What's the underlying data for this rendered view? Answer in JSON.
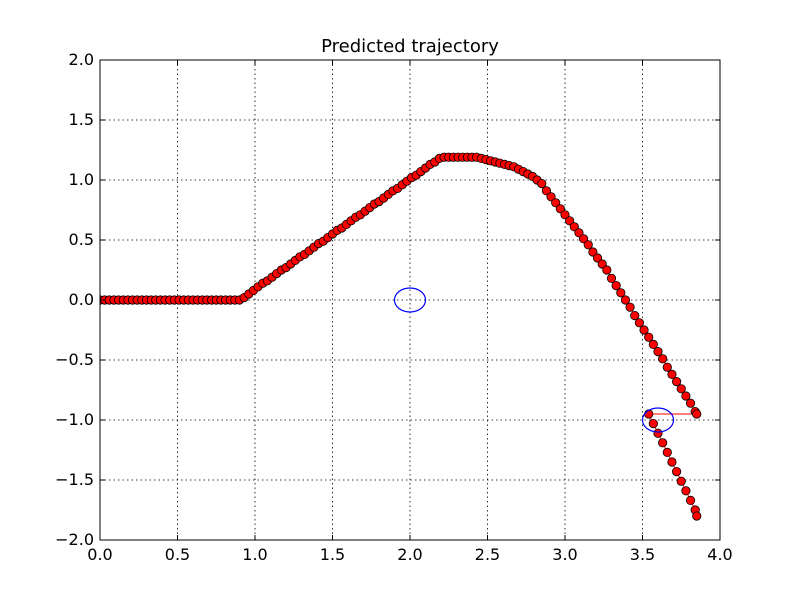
{
  "chart_data": {
    "type": "line",
    "title": "Predicted trajectory",
    "xlabel": "",
    "ylabel": "",
    "xlim": [
      0.0,
      4.0
    ],
    "ylim": [
      -2.0,
      2.0
    ],
    "x_ticks": [
      "0.0",
      "0.5",
      "1.0",
      "1.5",
      "2.0",
      "2.5",
      "3.0",
      "3.5",
      "4.0"
    ],
    "y_ticks": [
      "2.0",
      "1.5",
      "1.0",
      "0.5",
      "0.0",
      "−0.5",
      "−1.0",
      "−1.5",
      "−2.0"
    ],
    "grid": true,
    "colors": {
      "trajectory": "#ff0000",
      "obstacle": "#0000ff"
    },
    "series": [
      {
        "marker": "circle",
        "points": [
          [
            0.0,
            0.0
          ],
          [
            0.03,
            0.0
          ],
          [
            0.06,
            0.0
          ],
          [
            0.09,
            0.0
          ],
          [
            0.12,
            0.0
          ],
          [
            0.15,
            0.0
          ],
          [
            0.18,
            0.0
          ],
          [
            0.21,
            0.0
          ],
          [
            0.24,
            0.0
          ],
          [
            0.27,
            0.0
          ],
          [
            0.3,
            0.0
          ],
          [
            0.33,
            0.0
          ],
          [
            0.36,
            0.0
          ],
          [
            0.39,
            0.0
          ],
          [
            0.42,
            0.0
          ],
          [
            0.45,
            0.0
          ],
          [
            0.48,
            0.0
          ],
          [
            0.51,
            0.0
          ],
          [
            0.54,
            0.0
          ],
          [
            0.57,
            0.0
          ],
          [
            0.6,
            0.0
          ],
          [
            0.63,
            0.0
          ],
          [
            0.66,
            0.0
          ],
          [
            0.69,
            0.0
          ],
          [
            0.72,
            0.0
          ],
          [
            0.75,
            0.0
          ],
          [
            0.78,
            0.0
          ],
          [
            0.81,
            0.0
          ],
          [
            0.84,
            0.0
          ],
          [
            0.87,
            0.0
          ],
          [
            0.9,
            0.0
          ],
          [
            0.93,
            0.02
          ],
          [
            0.96,
            0.05
          ],
          [
            0.99,
            0.08
          ],
          [
            1.02,
            0.11
          ],
          [
            1.05,
            0.14
          ],
          [
            1.08,
            0.16
          ],
          [
            1.11,
            0.19
          ],
          [
            1.14,
            0.22
          ],
          [
            1.17,
            0.25
          ],
          [
            1.2,
            0.27
          ],
          [
            1.23,
            0.3
          ],
          [
            1.26,
            0.33
          ],
          [
            1.29,
            0.36
          ],
          [
            1.32,
            0.38
          ],
          [
            1.35,
            0.41
          ],
          [
            1.38,
            0.44
          ],
          [
            1.41,
            0.47
          ],
          [
            1.44,
            0.49
          ],
          [
            1.47,
            0.52
          ],
          [
            1.5,
            0.55
          ],
          [
            1.53,
            0.58
          ],
          [
            1.56,
            0.6
          ],
          [
            1.59,
            0.63
          ],
          [
            1.62,
            0.66
          ],
          [
            1.65,
            0.69
          ],
          [
            1.68,
            0.71
          ],
          [
            1.71,
            0.74
          ],
          [
            1.74,
            0.77
          ],
          [
            1.77,
            0.8
          ],
          [
            1.8,
            0.82
          ],
          [
            1.83,
            0.85
          ],
          [
            1.86,
            0.88
          ],
          [
            1.89,
            0.91
          ],
          [
            1.92,
            0.93
          ],
          [
            1.95,
            0.96
          ],
          [
            1.98,
            0.99
          ],
          [
            2.01,
            1.02
          ],
          [
            2.04,
            1.04
          ],
          [
            2.07,
            1.07
          ],
          [
            2.1,
            1.1
          ],
          [
            2.13,
            1.13
          ],
          [
            2.16,
            1.15
          ],
          [
            2.19,
            1.18
          ],
          [
            2.22,
            1.19
          ],
          [
            2.25,
            1.19
          ],
          [
            2.28,
            1.19
          ],
          [
            2.31,
            1.19
          ],
          [
            2.34,
            1.19
          ],
          [
            2.37,
            1.19
          ],
          [
            2.4,
            1.19
          ],
          [
            2.43,
            1.19
          ],
          [
            2.46,
            1.18
          ],
          [
            2.49,
            1.17
          ],
          [
            2.52,
            1.16
          ],
          [
            2.55,
            1.15
          ],
          [
            2.58,
            1.14
          ],
          [
            2.61,
            1.13
          ],
          [
            2.64,
            1.12
          ],
          [
            2.67,
            1.11
          ],
          [
            2.7,
            1.09
          ],
          [
            2.73,
            1.07
          ],
          [
            2.76,
            1.05
          ],
          [
            2.79,
            1.03
          ],
          [
            2.82,
            1.0
          ],
          [
            2.85,
            0.97
          ],
          [
            2.88,
            0.91
          ],
          [
            2.91,
            0.86
          ],
          [
            2.94,
            0.81
          ],
          [
            2.97,
            0.76
          ],
          [
            3.0,
            0.71
          ],
          [
            3.03,
            0.66
          ],
          [
            3.06,
            0.61
          ],
          [
            3.09,
            0.56
          ],
          [
            3.12,
            0.51
          ],
          [
            3.15,
            0.46
          ],
          [
            3.18,
            0.4
          ],
          [
            3.21,
            0.35
          ],
          [
            3.24,
            0.3
          ],
          [
            3.27,
            0.25
          ],
          [
            3.3,
            0.18
          ],
          [
            3.33,
            0.12
          ],
          [
            3.36,
            0.06
          ],
          [
            3.39,
            0.0
          ],
          [
            3.42,
            -0.06
          ],
          [
            3.45,
            -0.13
          ],
          [
            3.48,
            -0.19
          ],
          [
            3.51,
            -0.25
          ],
          [
            3.54,
            -0.31
          ],
          [
            3.57,
            -0.37
          ],
          [
            3.6,
            -0.43
          ],
          [
            3.63,
            -0.49
          ],
          [
            3.66,
            -0.56
          ],
          [
            3.69,
            -0.62
          ],
          [
            3.72,
            -0.68
          ],
          [
            3.75,
            -0.74
          ],
          [
            3.78,
            -0.8
          ],
          [
            3.81,
            -0.86
          ],
          [
            3.84,
            -0.93
          ],
          [
            3.85,
            -0.95
          ],
          [
            3.54,
            -0.95
          ],
          [
            3.57,
            -1.03
          ],
          [
            3.6,
            -1.11
          ],
          [
            3.63,
            -1.19
          ],
          [
            3.66,
            -1.27
          ],
          [
            3.69,
            -1.35
          ],
          [
            3.72,
            -1.43
          ],
          [
            3.75,
            -1.51
          ],
          [
            3.78,
            -1.59
          ],
          [
            3.81,
            -1.67
          ],
          [
            3.84,
            -1.75
          ],
          [
            3.85,
            -1.8
          ]
        ]
      }
    ],
    "obstacles": [
      {
        "center": [
          2.0,
          0.0
        ],
        "radius_x": 0.1,
        "radius_y": 0.1
      },
      {
        "center": [
          3.6,
          -1.0
        ],
        "radius_x": 0.1,
        "radius_y": 0.1
      }
    ]
  }
}
